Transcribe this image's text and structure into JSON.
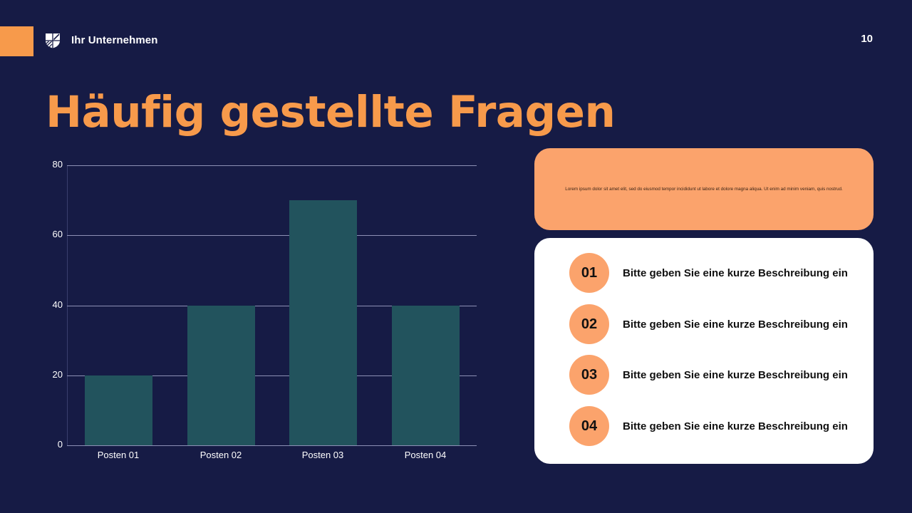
{
  "header": {
    "company_name": "Ihr Unternehmen",
    "logo_icon": "shield-logo-icon",
    "page_number": "10",
    "accent_color": "#f79a4b"
  },
  "title": "Häufig gestellte Fragen",
  "intro_card": {
    "text": "Lorem ipsum dolor sit amet elit, sed do eiusmod tempor incididunt ut labore et dolore magna aliqua. Ut enim ad minim veniam, quis nostrud.",
    "color": "#fba36c"
  },
  "faq_list": {
    "items": [
      {
        "number": "01",
        "text": "Bitte geben Sie eine kurze Beschreibung ein"
      },
      {
        "number": "02",
        "text": "Bitte geben Sie eine kurze Beschreibung ein"
      },
      {
        "number": "03",
        "text": "Bitte geben Sie eine kurze Beschreibung ein"
      },
      {
        "number": "04",
        "text": "Bitte geben Sie eine kurze Beschreibung ein"
      }
    ]
  },
  "chart_data": {
    "type": "bar",
    "title": "",
    "xlabel": "",
    "ylabel": "",
    "categories": [
      "Posten 01",
      "Posten 02",
      "Posten 03",
      "Posten 04"
    ],
    "values": [
      20,
      40,
      70,
      40
    ],
    "ylim": [
      0,
      80
    ],
    "yticks": [
      "0",
      "20",
      "40",
      "60",
      "80"
    ],
    "grid": true,
    "legend": null,
    "bar_color": "#22535d"
  }
}
